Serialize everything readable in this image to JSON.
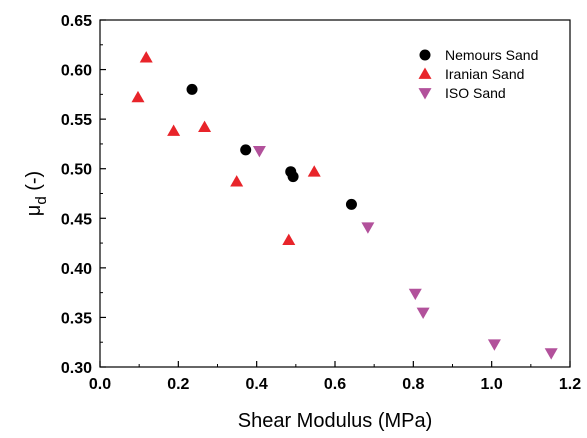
{
  "chart_data": {
    "type": "scatter",
    "xlabel": "Shear Modulus (MPa)",
    "ylabel": {
      "base": "μ",
      "subscript": "d",
      "suffix": " (-)"
    },
    "xlim": [
      0.0,
      1.2
    ],
    "ylim": [
      0.3,
      0.65
    ],
    "x_ticks": [
      "0.0",
      "0.2",
      "0.4",
      "0.6",
      "0.8",
      "1.0",
      "1.2"
    ],
    "y_ticks": [
      "0.30",
      "0.35",
      "0.40",
      "0.45",
      "0.50",
      "0.55",
      "0.60",
      "0.65"
    ],
    "grid": false,
    "legend_position": "top-right",
    "series": [
      {
        "name": "Nemours Sand",
        "marker": "circle",
        "color": "#000000",
        "points": [
          {
            "x": 0.235,
            "y": 0.58
          },
          {
            "x": 0.372,
            "y": 0.519
          },
          {
            "x": 0.487,
            "y": 0.497
          },
          {
            "x": 0.493,
            "y": 0.492
          },
          {
            "x": 0.642,
            "y": 0.464
          }
        ]
      },
      {
        "name": "Iranian Sand",
        "marker": "triangle-up",
        "color": "#e8242a",
        "points": [
          {
            "x": 0.118,
            "y": 0.612
          },
          {
            "x": 0.097,
            "y": 0.572
          },
          {
            "x": 0.188,
            "y": 0.538
          },
          {
            "x": 0.267,
            "y": 0.542
          },
          {
            "x": 0.349,
            "y": 0.487
          },
          {
            "x": 0.547,
            "y": 0.497
          },
          {
            "x": 0.482,
            "y": 0.428
          }
        ]
      },
      {
        "name": "ISO Sand",
        "marker": "triangle-down",
        "color": "#b2519b",
        "points": [
          {
            "x": 0.407,
            "y": 0.518
          },
          {
            "x": 0.684,
            "y": 0.441
          },
          {
            "x": 0.805,
            "y": 0.374
          },
          {
            "x": 0.825,
            "y": 0.355
          },
          {
            "x": 1.007,
            "y": 0.323
          },
          {
            "x": 1.152,
            "y": 0.314
          }
        ]
      }
    ]
  }
}
